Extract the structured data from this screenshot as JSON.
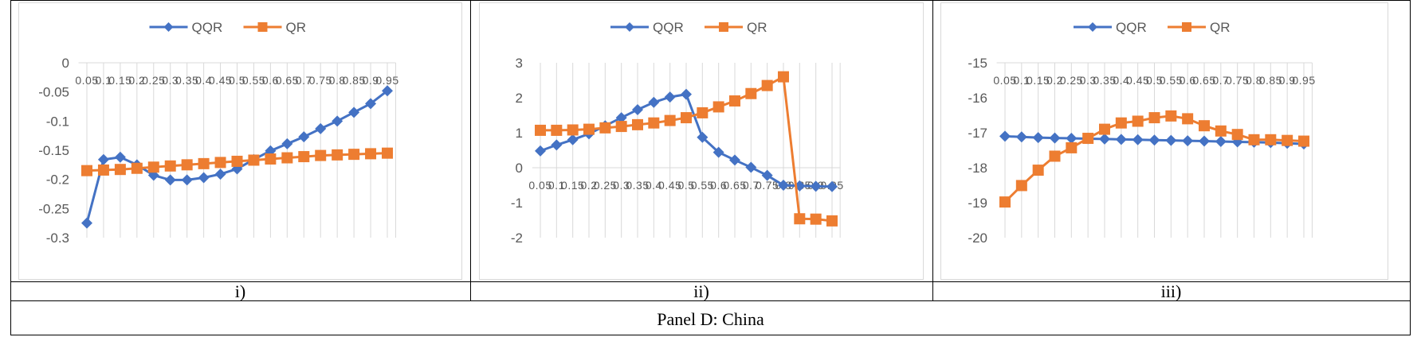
{
  "panel_title": "Panel D: China",
  "captions": [
    "i)",
    "ii)",
    "iii)"
  ],
  "colors": {
    "QQR": "#4472C4",
    "QR": "#ED7D31",
    "grid": "#d9d9d9",
    "text": "#595959"
  },
  "legend": [
    "QQR",
    "QR"
  ],
  "chart_data": [
    {
      "type": "line",
      "x": [
        "0.05",
        "0.1",
        "0.15",
        "0.2",
        "0.25",
        "0.3",
        "0.35",
        "0.4",
        "0.45",
        "0.5",
        "0.55",
        "0.6",
        "0.65",
        "0.7",
        "0.75",
        "0.8",
        "0.85",
        "0.9",
        "0.95"
      ],
      "x_tick_labels": [
        "0.05",
        "0.1",
        "0.15",
        "0.2",
        "0.25",
        "0.3",
        "0.35",
        "0.4",
        "0.45",
        "0.5",
        "0.55",
        "0.6",
        "0.65",
        "0.7",
        "0.75",
        "0.8",
        "0.85",
        "0.9",
        "0.95"
      ],
      "ylim": [
        -0.3,
        0
      ],
      "y_ticks": [
        0,
        -0.05,
        -0.1,
        -0.15,
        -0.2,
        -0.25,
        -0.3
      ],
      "y_tick_labels": [
        "0",
        "-0.05",
        "-0.1",
        "-0.15",
        "-0.2",
        "-0.25",
        "-0.3"
      ],
      "x_axis_at": 0,
      "grid": "vertical",
      "legend_position": "top",
      "series": [
        {
          "name": "QQR",
          "values": [
            -0.275,
            -0.166,
            -0.162,
            -0.175,
            -0.193,
            -0.201,
            -0.201,
            -0.197,
            -0.191,
            -0.182,
            -0.166,
            -0.151,
            -0.139,
            -0.127,
            -0.113,
            -0.1,
            -0.085,
            -0.07,
            -0.048
          ]
        },
        {
          "name": "QR",
          "values": [
            -0.185,
            -0.184,
            -0.183,
            -0.181,
            -0.179,
            -0.177,
            -0.175,
            -0.173,
            -0.171,
            -0.169,
            -0.167,
            -0.165,
            -0.163,
            -0.161,
            -0.159,
            -0.158,
            -0.157,
            -0.156,
            -0.155
          ]
        }
      ]
    },
    {
      "type": "line",
      "x": [
        "0.05",
        "0.1",
        "0.15",
        "0.2",
        "0.25",
        "0.3",
        "0.35",
        "0.4",
        "0.45",
        "0.5",
        "0.55",
        "0.6",
        "0.65",
        "0.7",
        "0.75",
        "0.8",
        "0.85",
        "0.9",
        "0.95"
      ],
      "x_tick_labels": [
        "0.05",
        "0.1",
        "0.15",
        "0.2",
        "0.25",
        "0.3",
        "0.35",
        "0.4",
        "0.45",
        "0.5",
        "0.55",
        "0.6",
        "0.65",
        "0.7",
        "0.75",
        "0.8",
        "0.85",
        "0.9",
        "0.95"
      ],
      "ylim": [
        -2,
        3
      ],
      "y_ticks": [
        3,
        2,
        1,
        0,
        -1,
        -2
      ],
      "y_tick_labels": [
        "3",
        "2",
        "1",
        "0",
        "-1",
        "-2"
      ],
      "x_axis_at": 0,
      "grid": "vertical",
      "legend_position": "top",
      "series": [
        {
          "name": "QQR",
          "values": [
            0.48,
            0.65,
            0.8,
            0.97,
            1.2,
            1.43,
            1.66,
            1.87,
            2.02,
            2.1,
            0.87,
            0.44,
            0.22,
            0.01,
            -0.22,
            -0.5,
            -0.52,
            -0.53,
            -0.54
          ]
        },
        {
          "name": "QR",
          "values": [
            1.07,
            1.07,
            1.08,
            1.1,
            1.14,
            1.18,
            1.23,
            1.28,
            1.35,
            1.43,
            1.57,
            1.74,
            1.91,
            2.12,
            2.35,
            2.6,
            -1.46,
            -1.47,
            -1.52
          ]
        }
      ]
    },
    {
      "type": "line",
      "x": [
        "0.05",
        "0.1",
        "0.15",
        "0.2",
        "0.25",
        "0.3",
        "0.35",
        "0.4",
        "0.45",
        "0.5",
        "0.55",
        "0.6",
        "0.65",
        "0.7",
        "0.75",
        "0.8",
        "0.85",
        "0.9",
        "0.95"
      ],
      "x_tick_labels": [
        "0.05",
        "0.1",
        "0.15",
        "0.2",
        "0.25",
        "0.3",
        "0.35",
        "0.4",
        "0.45",
        "0.5",
        "0.55",
        "0.6",
        "0.65",
        "0.7",
        "0.75",
        "0.8",
        "0.85",
        "0.9",
        "0.95"
      ],
      "ylim": [
        -20,
        -15
      ],
      "y_ticks": [
        -15,
        -16,
        -17,
        -18,
        -19,
        -20
      ],
      "y_tick_labels": [
        "-15",
        "-16",
        "-17",
        "-18",
        "-19",
        "-20"
      ],
      "x_axis_at": -15,
      "grid": "vertical",
      "legend_position": "top",
      "series": [
        {
          "name": "QQR",
          "values": [
            -17.1,
            -17.12,
            -17.14,
            -17.15,
            -17.16,
            -17.17,
            -17.18,
            -17.19,
            -17.2,
            -17.21,
            -17.22,
            -17.23,
            -17.24,
            -17.25,
            -17.26,
            -17.27,
            -17.28,
            -17.3,
            -17.32
          ]
        },
        {
          "name": "QR",
          "values": [
            -18.98,
            -18.51,
            -18.07,
            -17.67,
            -17.43,
            -17.16,
            -16.9,
            -16.72,
            -16.67,
            -16.57,
            -16.52,
            -16.6,
            -16.8,
            -16.95,
            -17.05,
            -17.2,
            -17.2,
            -17.22,
            -17.24
          ]
        }
      ]
    }
  ]
}
